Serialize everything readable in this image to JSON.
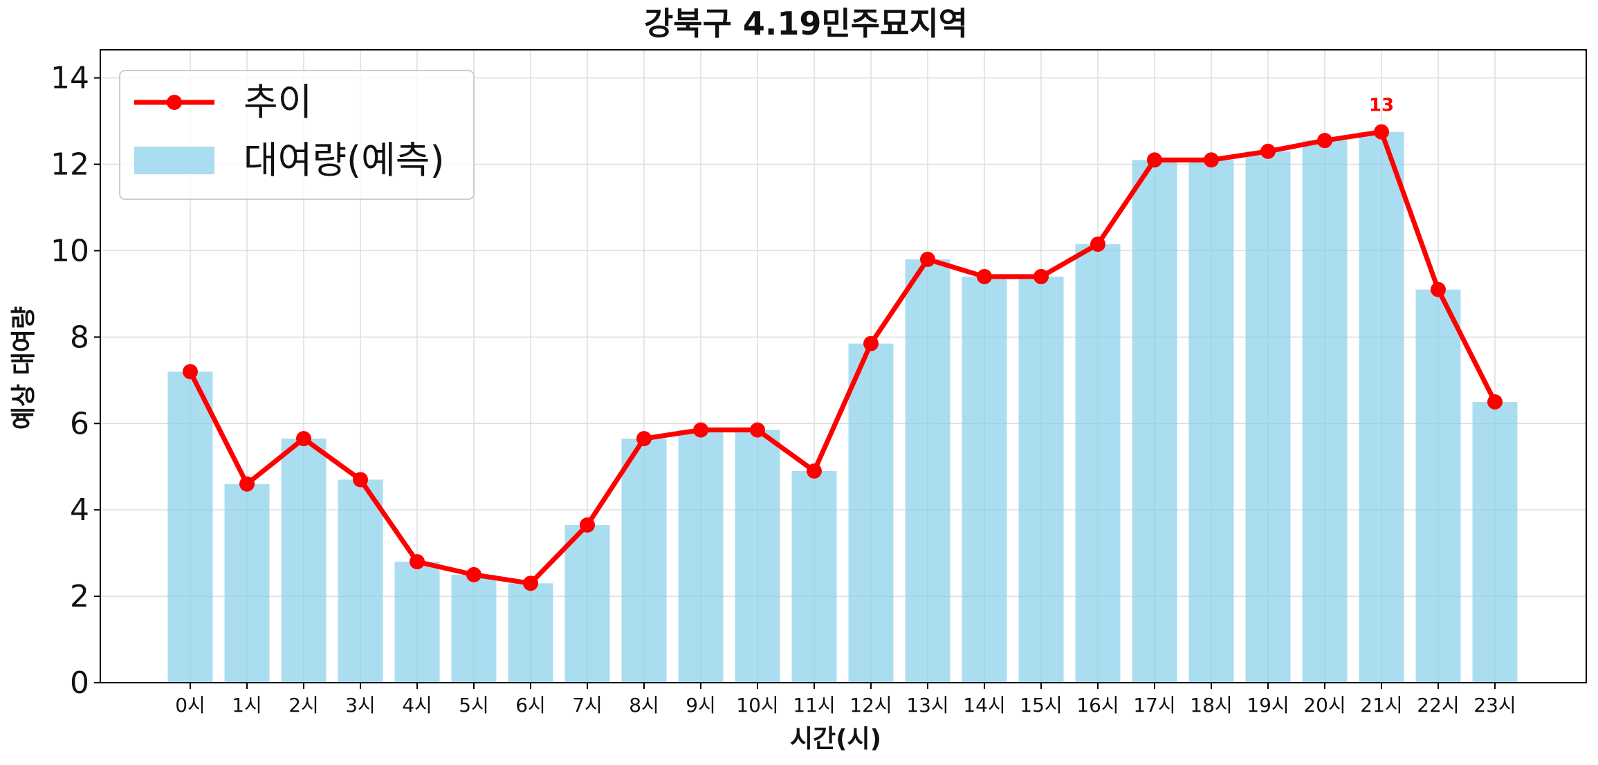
{
  "chart_data": {
    "type": "bar",
    "title": "강북구 4.19민주묘지역",
    "xlabel": "시간(시)",
    "ylabel": "예상 대여량",
    "categories": [
      "0시",
      "1시",
      "2시",
      "3시",
      "4시",
      "5시",
      "6시",
      "7시",
      "8시",
      "9시",
      "10시",
      "11시",
      "12시",
      "13시",
      "14시",
      "15시",
      "16시",
      "17시",
      "18시",
      "19시",
      "20시",
      "21시",
      "22시",
      "23시"
    ],
    "ylim": [
      0,
      14.65
    ],
    "yticks": [
      0,
      2,
      4,
      6,
      8,
      10,
      12,
      14
    ],
    "grid": true,
    "legend_position": "upper-left",
    "series": [
      {
        "name": "대여량(예측)",
        "kind": "bar",
        "color": "#87ceeb",
        "values": [
          7.2,
          4.6,
          5.65,
          4.7,
          2.8,
          2.5,
          2.3,
          3.65,
          5.65,
          5.85,
          5.85,
          4.9,
          7.85,
          9.8,
          9.4,
          9.4,
          10.15,
          12.1,
          12.1,
          12.3,
          12.55,
          12.75,
          9.1,
          6.5
        ]
      },
      {
        "name": "추이",
        "kind": "line",
        "color": "#ff0000",
        "values": [
          7.2,
          4.6,
          5.65,
          4.7,
          2.8,
          2.5,
          2.3,
          3.65,
          5.65,
          5.85,
          5.85,
          4.9,
          7.85,
          9.8,
          9.4,
          9.4,
          10.15,
          12.1,
          12.1,
          12.3,
          12.55,
          12.75,
          9.1,
          6.5
        ]
      }
    ],
    "annotations": [
      {
        "category": "21시",
        "value": 12.75,
        "text": "13"
      }
    ]
  }
}
